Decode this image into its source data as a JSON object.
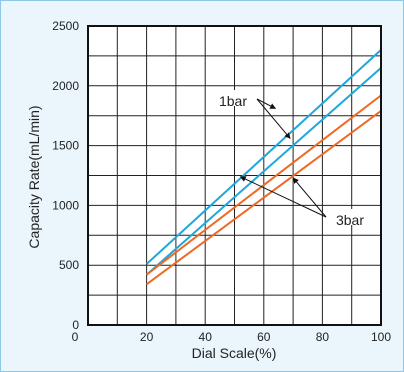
{
  "chart_data": {
    "type": "line",
    "title": "",
    "xlabel": "Dial Scale(%)",
    "ylabel": "Capacity Rate(mL/min)",
    "xlim": [
      0,
      100
    ],
    "ylim": [
      0,
      2500
    ],
    "x_ticks": [
      "0",
      "20",
      "40",
      "60",
      "80",
      "100"
    ],
    "y_ticks": [
      "0",
      "500",
      "1000",
      "1500",
      "2000",
      "2500"
    ],
    "grid": true,
    "series": [
      {
        "name": "1bar",
        "color": "#1ea7dc",
        "x": [
          20,
          100
        ],
        "y": [
          510,
          2300
        ]
      },
      {
        "name": "1bar",
        "color": "#1ea7dc",
        "x": [
          20,
          100
        ],
        "y": [
          420,
          2150
        ]
      },
      {
        "name": "3bar",
        "color": "#ee6a24",
        "x": [
          20,
          100
        ],
        "y": [
          420,
          1920
        ]
      },
      {
        "name": "3bar",
        "color": "#ee6a24",
        "x": [
          20,
          100
        ],
        "y": [
          340,
          1790
        ]
      }
    ],
    "annotations": [
      {
        "text": "1bar",
        "points_to": [
          [
            64,
            1810
          ],
          [
            69,
            1560
          ]
        ]
      },
      {
        "text": "3bar",
        "points_to": [
          [
            52,
            1240
          ],
          [
            70,
            1230
          ]
        ]
      }
    ]
  }
}
